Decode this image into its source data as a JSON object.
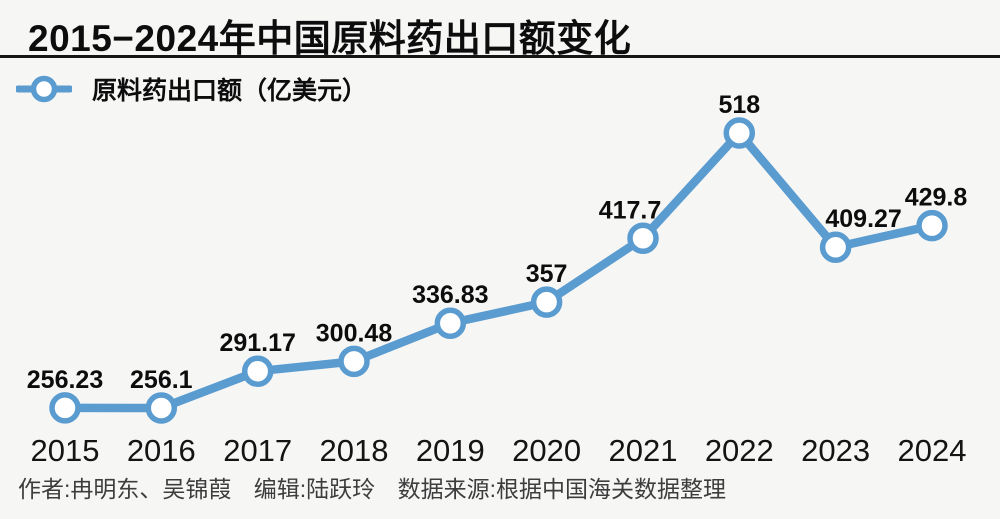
{
  "header": {
    "title": "2015−2024年中国原料药出口额变化"
  },
  "legend": {
    "label": "原料药出口额（亿美元）"
  },
  "chart_data": {
    "type": "line",
    "title": "2015−2024年中国原料药出口额变化",
    "series": [
      {
        "name": "原料药出口额（亿美元）",
        "values": [
          256.23,
          256.1,
          291.17,
          300.48,
          336.83,
          357,
          417.7,
          518,
          409.27,
          429.8
        ]
      }
    ],
    "categories": [
      "2015",
      "2016",
      "2017",
      "2018",
      "2019",
      "2020",
      "2021",
      "2022",
      "2023",
      "2024"
    ],
    "value_labels": [
      "256.23",
      "256.1",
      "291.17",
      "300.48",
      "336.83",
      "357",
      "417.7",
      "518",
      "409.27",
      "429.8"
    ],
    "xlabel": "",
    "ylabel": "亿美元",
    "ylim": [
      240,
      560
    ],
    "grid": false,
    "legend_position": "top-left",
    "line_color": "#5a9bd0",
    "marker_fill": "#ffffff",
    "label_color": "#0d0d0d"
  },
  "footer": {
    "author": "作者:冉明东、吴锦葭",
    "editor": "编辑:陆跃玲",
    "source": "数据来源:根据中国海关数据整理"
  }
}
